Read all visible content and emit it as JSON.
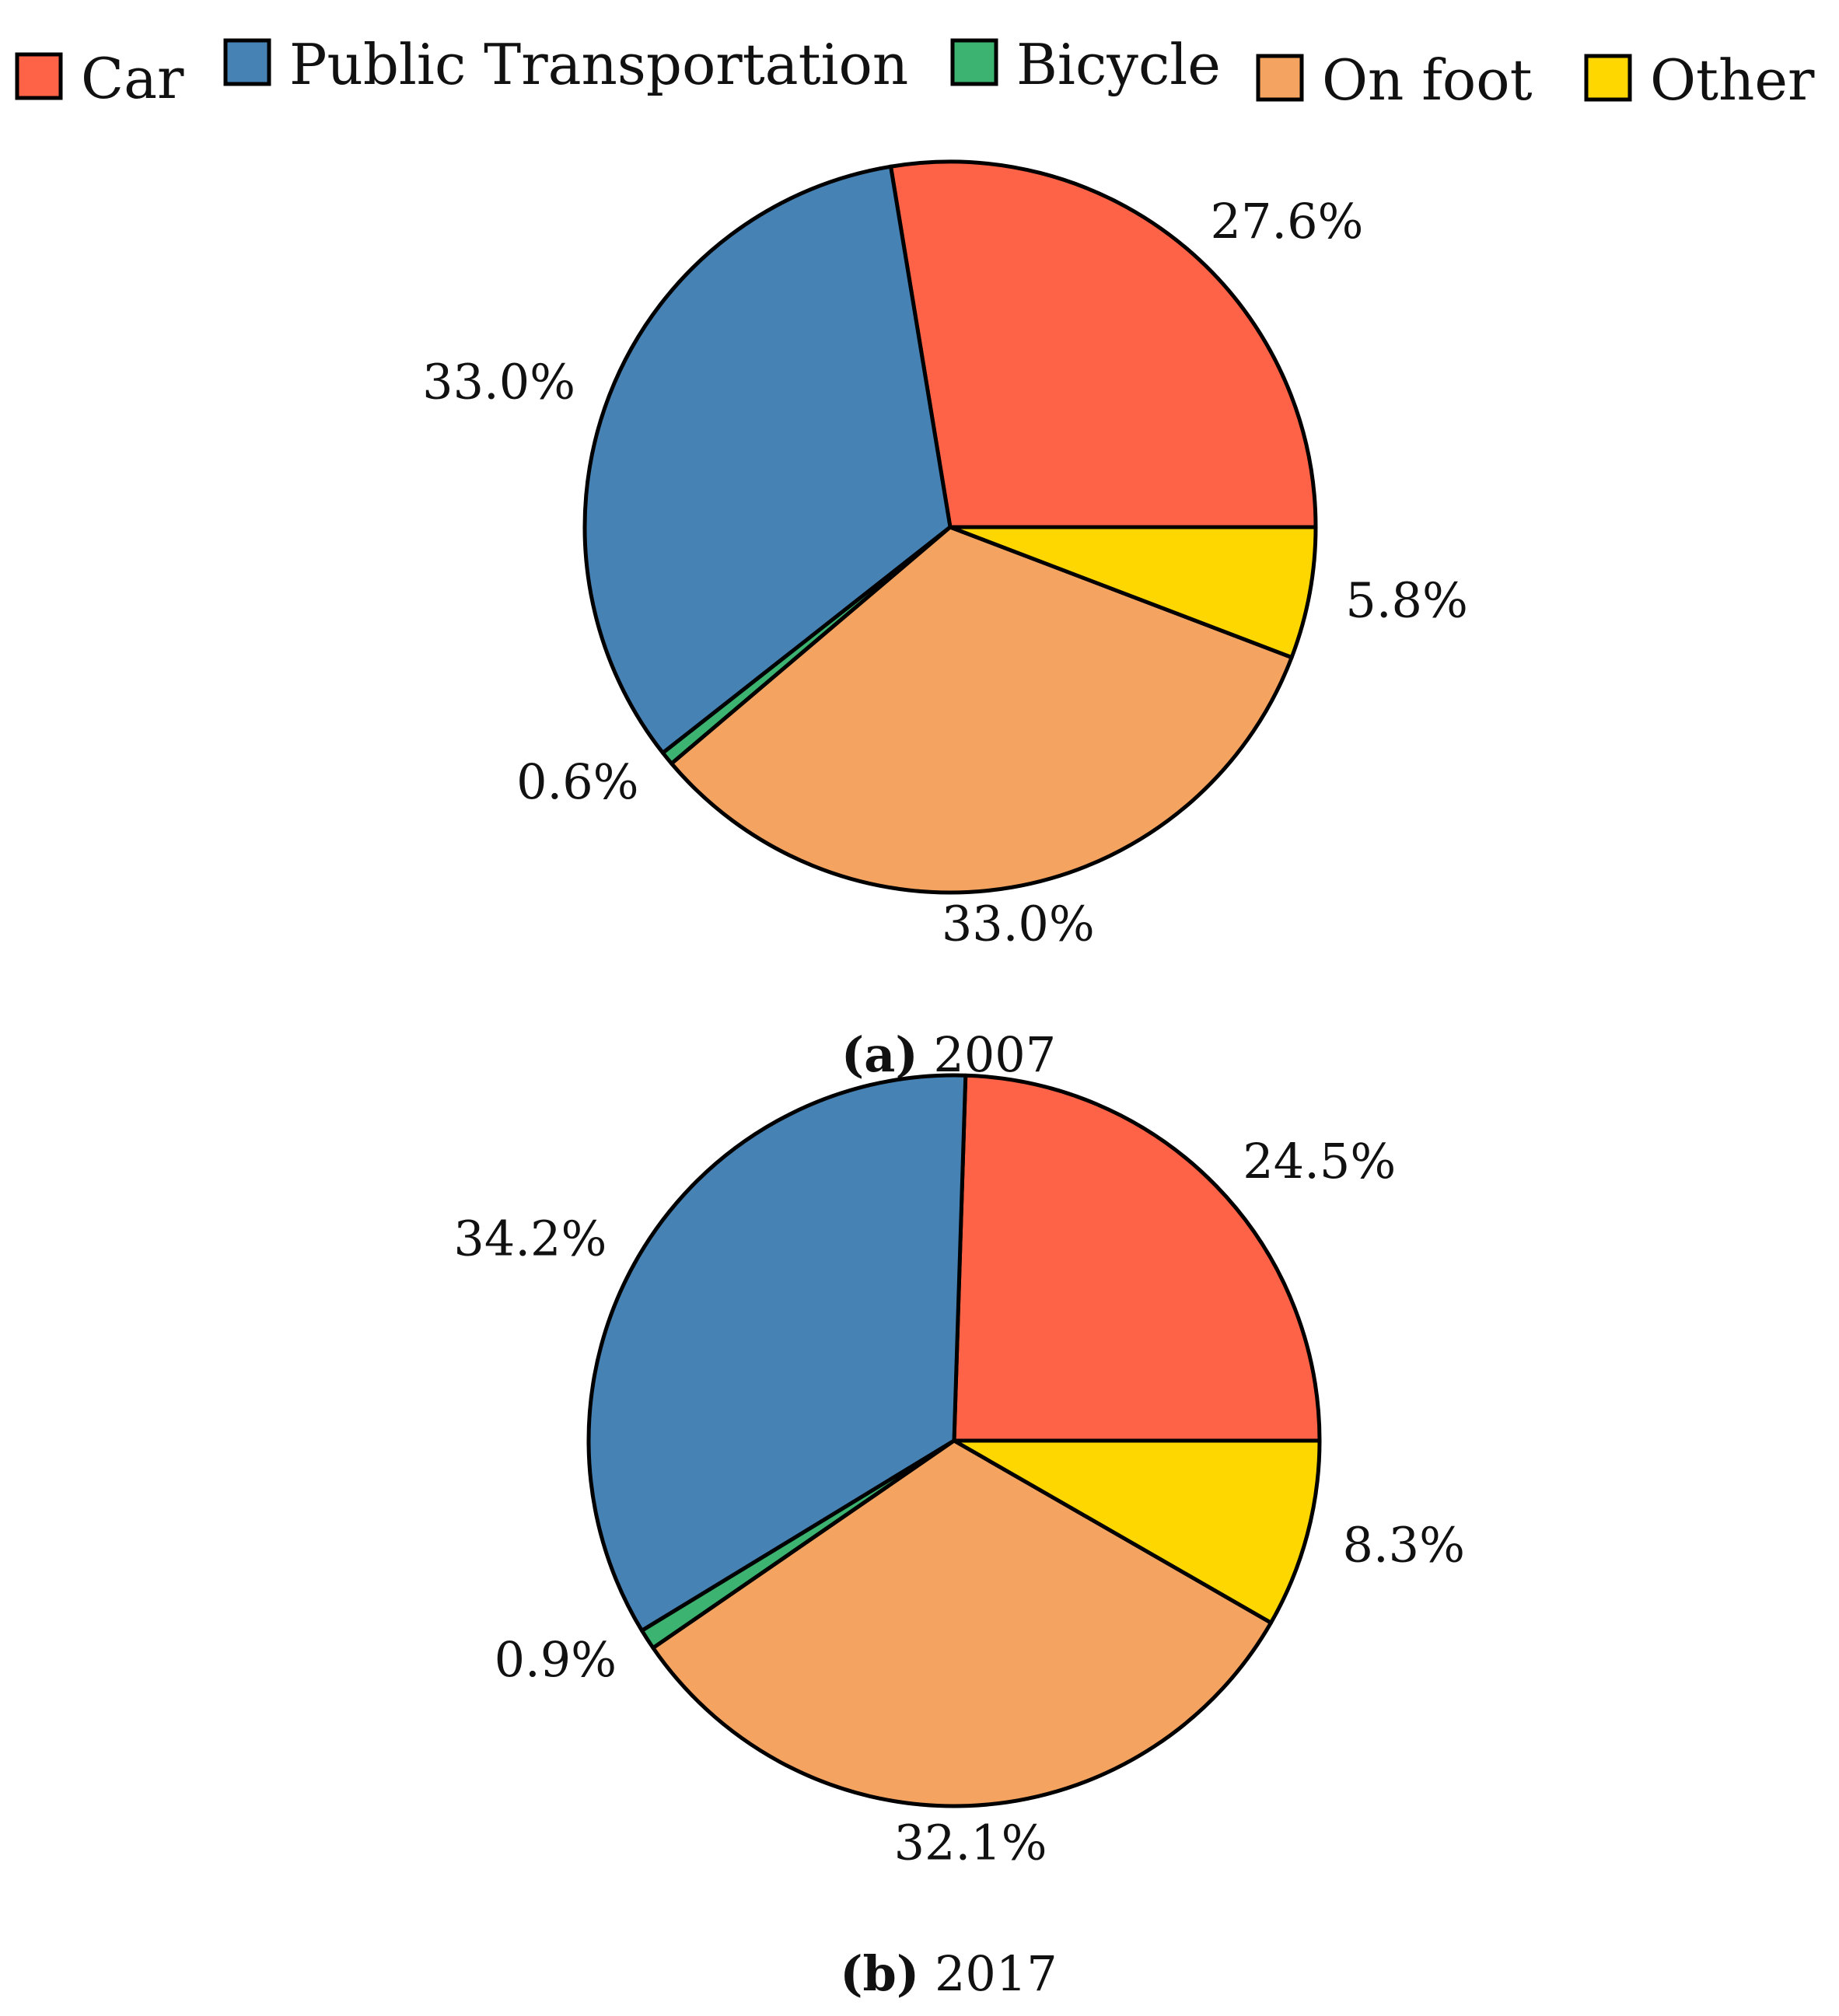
{
  "legend": [
    {
      "label": "Car",
      "color": "#FF6347"
    },
    {
      "label": "Public Transportation",
      "color": "#4682B4"
    },
    {
      "label": "Bicycle",
      "color": "#3CB371"
    },
    {
      "label": "On foot",
      "color": "#F4A460"
    },
    {
      "label": "Other",
      "color": "#FFD700"
    }
  ],
  "chart_data": [
    {
      "type": "pie",
      "caption_prefix": "(a)",
      "caption_text": "2007",
      "categories": [
        "Car",
        "Public Transportation",
        "Bicycle",
        "On foot",
        "Other"
      ],
      "values": [
        27.6,
        33.0,
        0.6,
        33.0,
        5.8
      ],
      "labels": [
        "27.6%",
        "33.0%",
        "0.6%",
        "33.0%",
        "5.8%"
      ],
      "start": "3 o'clock",
      "direction": "counterclockwise"
    },
    {
      "type": "pie",
      "caption_prefix": "(b)",
      "caption_text": "2017",
      "categories": [
        "Car",
        "Public Transportation",
        "Bicycle",
        "On foot",
        "Other"
      ],
      "values": [
        24.5,
        34.2,
        0.9,
        32.1,
        8.3
      ],
      "labels": [
        "24.5%",
        "34.2%",
        "0.9%",
        "32.1%",
        "8.3%"
      ],
      "start": "3 o'clock",
      "direction": "counterclockwise"
    }
  ]
}
